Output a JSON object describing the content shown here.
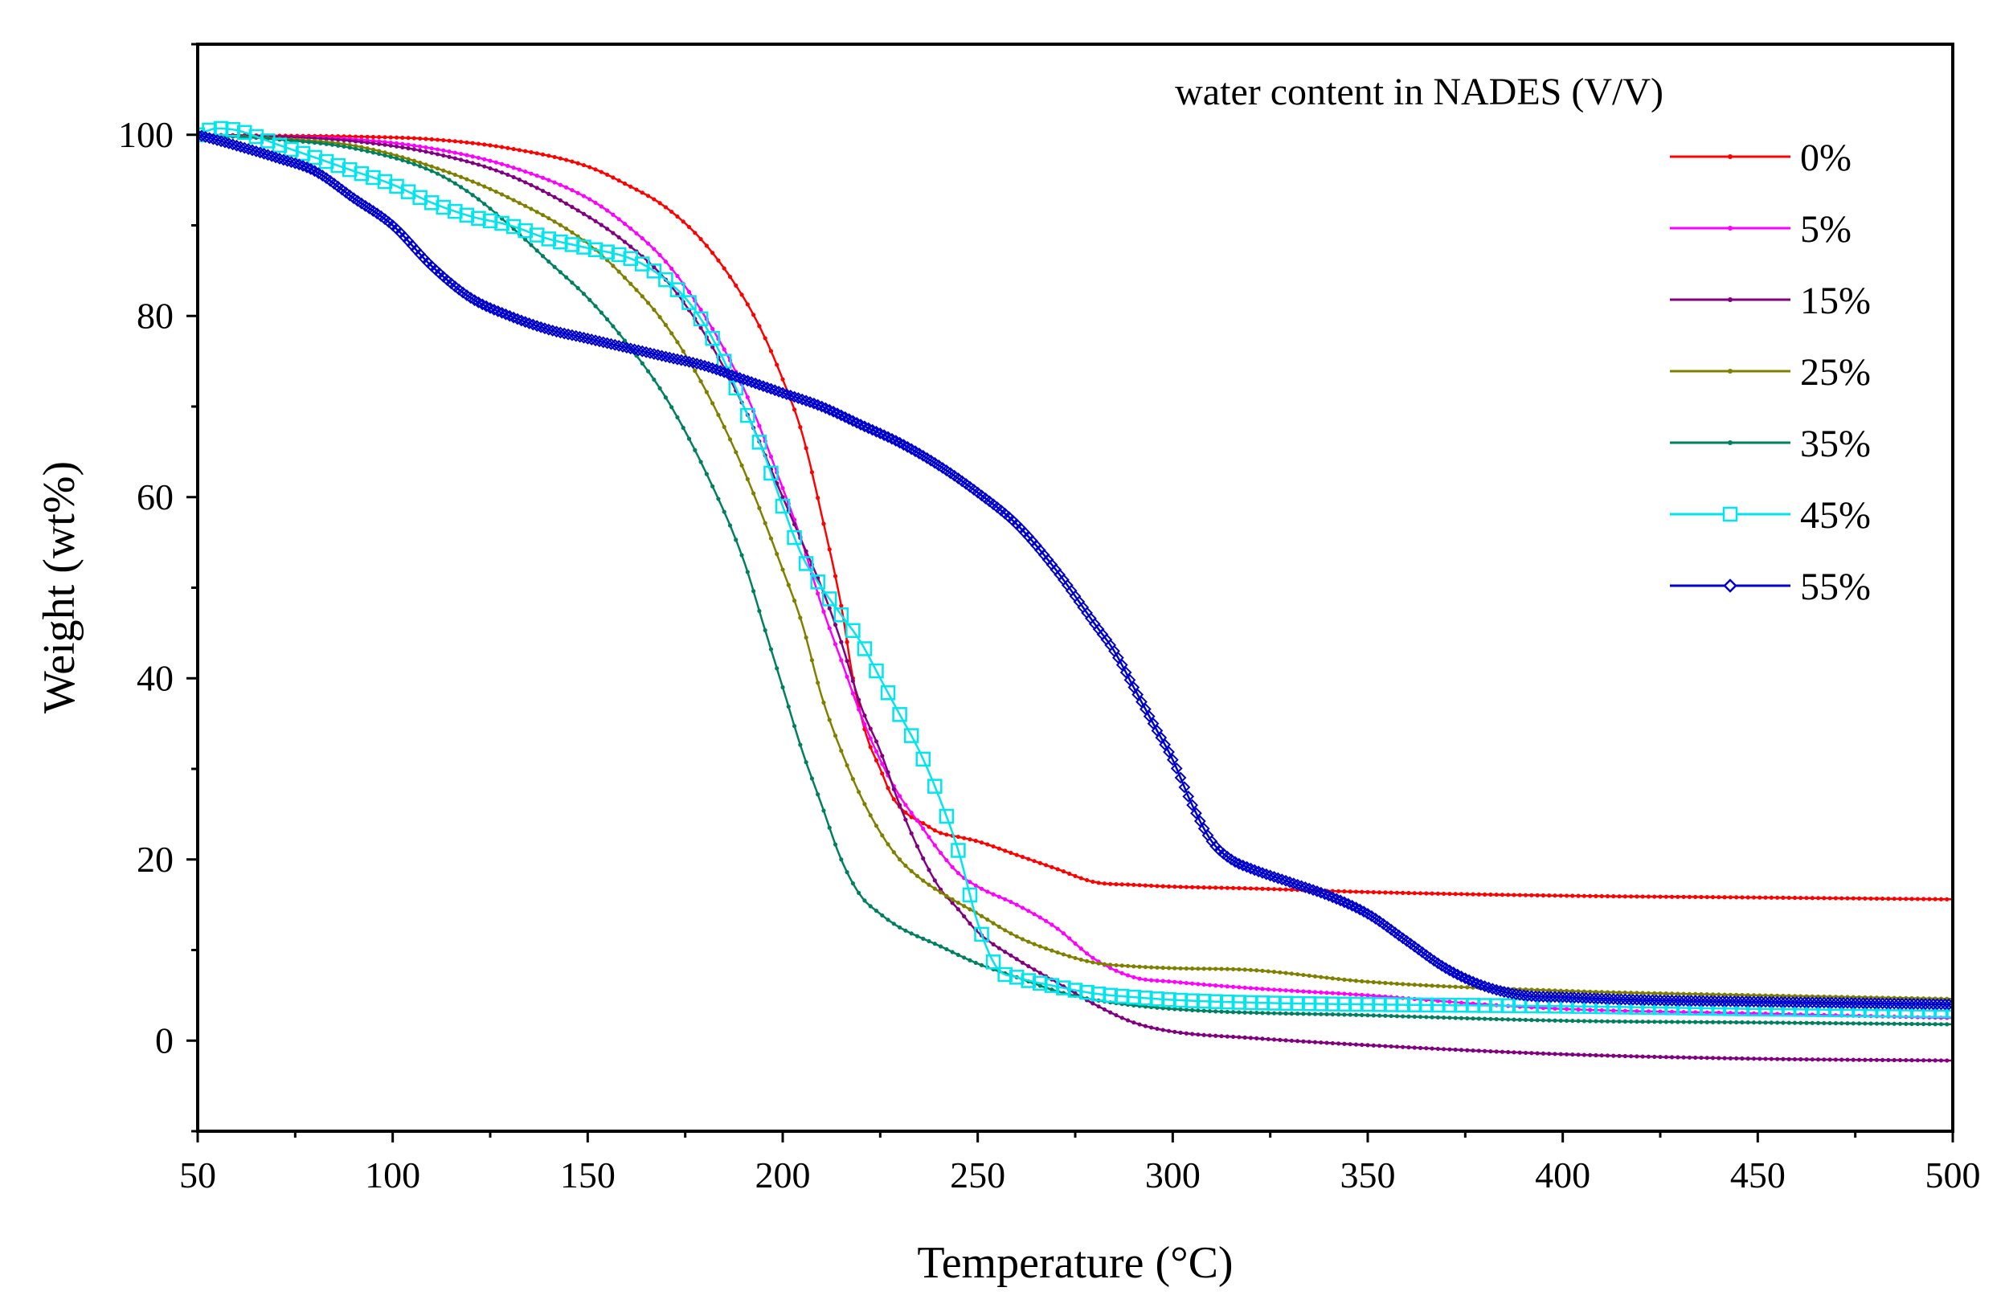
{
  "chart_data": {
    "type": "line",
    "title": "",
    "xlabel": "Temperature (°C)",
    "ylabel": "Weight (wt%)",
    "xlim": [
      50,
      500
    ],
    "ylim": [
      -10,
      110
    ],
    "xticks": [
      50,
      100,
      150,
      200,
      250,
      300,
      350,
      400,
      450,
      500
    ],
    "yticks": [
      0,
      20,
      40,
      60,
      80,
      100
    ],
    "xtick_labels": [
      "50",
      "100",
      "150",
      "200",
      "250",
      "300",
      "350",
      "400",
      "450",
      "500"
    ],
    "ytick_labels": [
      "0",
      "20",
      "40",
      "60",
      "80",
      "100"
    ],
    "legend_title": "water content in NADES (V/V)",
    "legend_position": "top-right",
    "grid": false,
    "series": [
      {
        "name": "0%",
        "color": "#ff0000",
        "marker": "dot",
        "x": [
          50,
          70,
          90,
          110,
          130,
          150,
          160,
          170,
          180,
          190,
          195,
          200,
          205,
          210,
          215,
          218,
          220,
          222,
          225,
          228,
          232,
          236,
          240,
          245,
          250,
          260,
          270,
          280,
          290,
          300,
          320,
          350,
          400,
          450,
          500
        ],
        "y": [
          100,
          99.9,
          99.8,
          99.5,
          98.5,
          96.5,
          94.5,
          92,
          88,
          82,
          78,
          73,
          67,
          58,
          48,
          40,
          36,
          33,
          30,
          27,
          25,
          24,
          23,
          22.5,
          22,
          20.5,
          19,
          17.5,
          17.2,
          17,
          16.8,
          16.4,
          16,
          15.8,
          15.6
        ]
      },
      {
        "name": "5%",
        "color": "#ff00ff",
        "marker": "dot",
        "x": [
          50,
          70,
          90,
          110,
          130,
          150,
          160,
          170,
          180,
          190,
          200,
          205,
          210,
          215,
          220,
          225,
          230,
          235,
          240,
          245,
          250,
          260,
          270,
          280,
          290,
          300,
          320,
          350,
          380,
          400,
          450,
          500
        ],
        "y": [
          100,
          99.8,
          99.5,
          98.5,
          96.5,
          93,
          90,
          86,
          80,
          72,
          61,
          55,
          48,
          42,
          36,
          31,
          27,
          24,
          21,
          18.5,
          17,
          15,
          12.5,
          9,
          7,
          6.5,
          5.8,
          5,
          4,
          3.5,
          3,
          2.5
        ]
      },
      {
        "name": "15%",
        "color": "#800080",
        "marker": "dot",
        "x": [
          50,
          70,
          90,
          110,
          130,
          150,
          160,
          170,
          180,
          190,
          200,
          205,
          210,
          215,
          220,
          225,
          230,
          235,
          240,
          245,
          250,
          260,
          270,
          280,
          290,
          300,
          320,
          350,
          400,
          450,
          500
        ],
        "y": [
          100,
          99.8,
          99.3,
          98,
          95.5,
          91,
          88,
          84,
          78,
          70,
          60,
          55,
          50,
          44,
          37,
          32,
          26,
          21,
          17,
          14.5,
          12,
          9,
          6.5,
          4,
          2,
          1,
          0.3,
          -0.5,
          -1.5,
          -2,
          -2.2
        ]
      },
      {
        "name": "25%",
        "color": "#808000",
        "marker": "dot",
        "x": [
          50,
          70,
          90,
          110,
          130,
          150,
          160,
          170,
          180,
          190,
          200,
          205,
          210,
          215,
          220,
          225,
          230,
          235,
          240,
          250,
          260,
          270,
          280,
          290,
          300,
          320,
          350,
          400,
          450,
          500
        ],
        "y": [
          100,
          99.6,
          98.8,
          96.5,
          93,
          88,
          84,
          79,
          72,
          63,
          52,
          46,
          38,
          32,
          27,
          23,
          20,
          18,
          16.5,
          14,
          11.5,
          9.8,
          8.6,
          8.2,
          8,
          7.8,
          6.5,
          5.5,
          5,
          4.6
        ]
      },
      {
        "name": "35%",
        "color": "#008060",
        "marker": "dot",
        "x": [
          50,
          70,
          90,
          110,
          120,
          130,
          140,
          150,
          160,
          170,
          180,
          190,
          195,
          200,
          205,
          210,
          215,
          220,
          225,
          230,
          240,
          250,
          260,
          270,
          280,
          300,
          350,
          400,
          450,
          500
        ],
        "y": [
          100,
          99.5,
          98.5,
          96,
          93.5,
          90,
          86,
          82,
          77,
          71,
          63,
          53,
          46,
          39,
          32,
          26,
          20,
          16,
          14,
          12.5,
          10.5,
          8.5,
          7,
          5.5,
          4.5,
          3.5,
          2.8,
          2.2,
          2,
          1.8
        ]
      },
      {
        "name": "45%",
        "color": "#00e5ee",
        "marker": "square",
        "x": [
          50,
          55,
          60,
          65,
          70,
          80,
          90,
          100,
          110,
          120,
          130,
          140,
          150,
          160,
          165,
          170,
          175,
          180,
          185,
          190,
          195,
          200,
          205,
          210,
          215,
          220,
          225,
          230,
          235,
          240,
          245,
          250,
          255,
          260,
          270,
          280,
          290,
          300,
          320,
          350,
          400,
          450,
          500
        ],
        "y": [
          100,
          100.7,
          100.5,
          99.8,
          99,
          97.5,
          96,
          94.5,
          92.5,
          91,
          90,
          88.5,
          87.5,
          86.5,
          85.5,
          84,
          82,
          79,
          75,
          70,
          65,
          59,
          53.5,
          50,
          47,
          44,
          40,
          36,
          32,
          27,
          21,
          13,
          8,
          7,
          6,
          5.2,
          4.8,
          4.5,
          4.2,
          4,
          3.8,
          3.5,
          3.3
        ]
      },
      {
        "name": "55%",
        "color": "#0000cc",
        "marker": "diamond",
        "x": [
          50,
          60,
          70,
          80,
          90,
          100,
          110,
          120,
          130,
          140,
          150,
          160,
          170,
          180,
          190,
          200,
          210,
          220,
          230,
          240,
          250,
          260,
          270,
          280,
          285,
          290,
          295,
          300,
          305,
          310,
          315,
          320,
          330,
          340,
          350,
          360,
          370,
          380,
          390,
          400,
          420,
          450,
          500
        ],
        "y": [
          100,
          98.8,
          97.5,
          96,
          93,
          90,
          85.5,
          82,
          80,
          78.5,
          77.5,
          76.5,
          75.5,
          74.5,
          73,
          71.5,
          70,
          68,
          66,
          63.5,
          60.5,
          57,
          52,
          46,
          43,
          39,
          35,
          31,
          26,
          22,
          20,
          19,
          17.5,
          16,
          14,
          11,
          8,
          6,
          5,
          4.8,
          4.5,
          4.3,
          4
        ]
      }
    ]
  }
}
